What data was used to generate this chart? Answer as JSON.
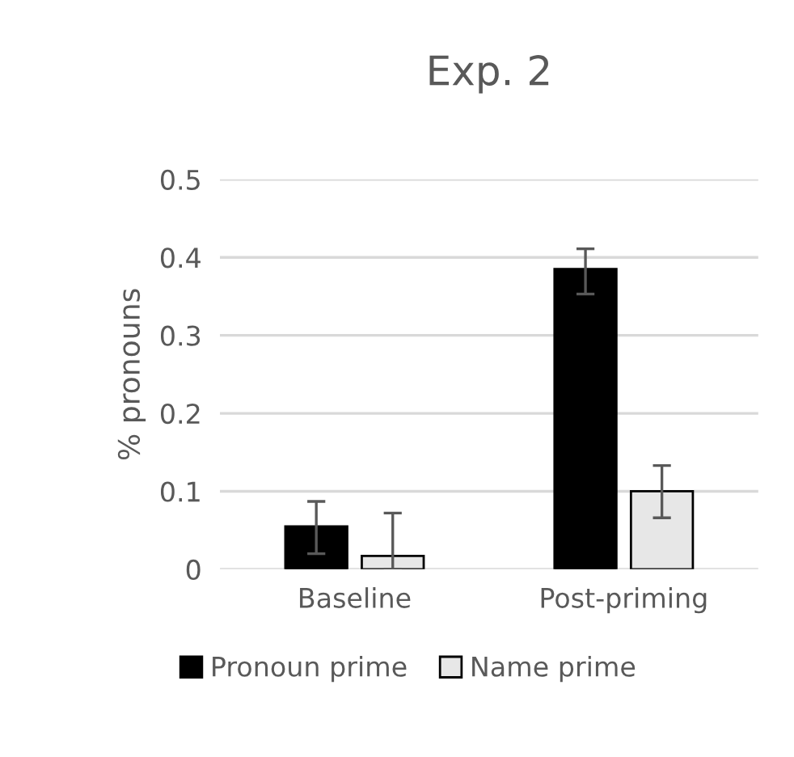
{
  "chart_data": {
    "type": "bar",
    "title": "Exp. 2",
    "ylabel": "% pronouns",
    "categories": [
      "Baseline",
      "Post-priming"
    ],
    "series": [
      {
        "name": "Pronoun prime",
        "color": "#000000",
        "values": [
          0.055,
          0.385
        ],
        "errors": [
          [
            0.02,
            0.087
          ],
          [
            0.353,
            0.411
          ]
        ]
      },
      {
        "name": "Name prime",
        "color": "#e7e7e7",
        "values": [
          0.017,
          0.1
        ],
        "errors": [
          [
            0,
            0.072
          ],
          [
            0.066,
            0.133
          ]
        ]
      }
    ],
    "ylim": [
      0,
      0.5
    ],
    "yticks": [
      0,
      0.1,
      0.2,
      0.3,
      0.4,
      0.5
    ],
    "grid": "y",
    "legend": "bottom"
  }
}
